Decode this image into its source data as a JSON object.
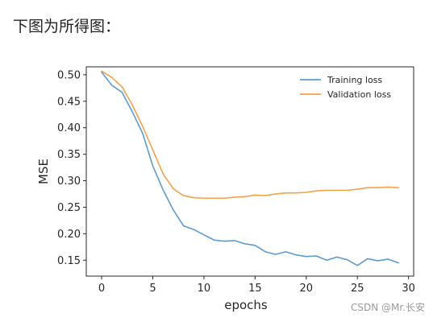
{
  "intro_text": "下图为所得图：",
  "watermark": "CSDN @Mr.长安",
  "colors": {
    "training": "#5b9bd5",
    "validation": "#f5a14a"
  },
  "chart_data": {
    "type": "line",
    "title": "",
    "xlabel": "epochs",
    "ylabel": "MSE",
    "xlim": [
      -1.5,
      30.5
    ],
    "ylim": [
      0.12,
      0.515
    ],
    "xticks": [
      0,
      5,
      10,
      15,
      20,
      25,
      30
    ],
    "yticks": [
      0.15,
      0.2,
      0.25,
      0.3,
      0.35,
      0.4,
      0.45,
      0.5
    ],
    "ytick_labels": [
      "0.15",
      "0.20",
      "0.25",
      "0.30",
      "0.35",
      "0.40",
      "0.45",
      "0.50"
    ],
    "legend_position": "top-right",
    "grid": false,
    "x": [
      0,
      1,
      2,
      3,
      4,
      5,
      6,
      7,
      8,
      9,
      10,
      11,
      12,
      13,
      14,
      15,
      16,
      17,
      18,
      19,
      20,
      21,
      22,
      23,
      24,
      25,
      26,
      27,
      28,
      29
    ],
    "series": [
      {
        "name": "Training loss",
        "values": [
          0.505,
          0.48,
          0.467,
          0.43,
          0.39,
          0.328,
          0.283,
          0.245,
          0.215,
          0.208,
          0.198,
          0.188,
          0.186,
          0.187,
          0.181,
          0.178,
          0.166,
          0.161,
          0.166,
          0.16,
          0.157,
          0.158,
          0.15,
          0.156,
          0.151,
          0.14,
          0.153,
          0.149,
          0.152,
          0.145
        ]
      },
      {
        "name": "Validation loss",
        "values": [
          0.507,
          0.495,
          0.477,
          0.443,
          0.403,
          0.358,
          0.313,
          0.285,
          0.272,
          0.268,
          0.267,
          0.267,
          0.267,
          0.269,
          0.27,
          0.273,
          0.272,
          0.275,
          0.277,
          0.277,
          0.278,
          0.281,
          0.282,
          0.282,
          0.282,
          0.284,
          0.287,
          0.287,
          0.288,
          0.287
        ]
      }
    ]
  }
}
